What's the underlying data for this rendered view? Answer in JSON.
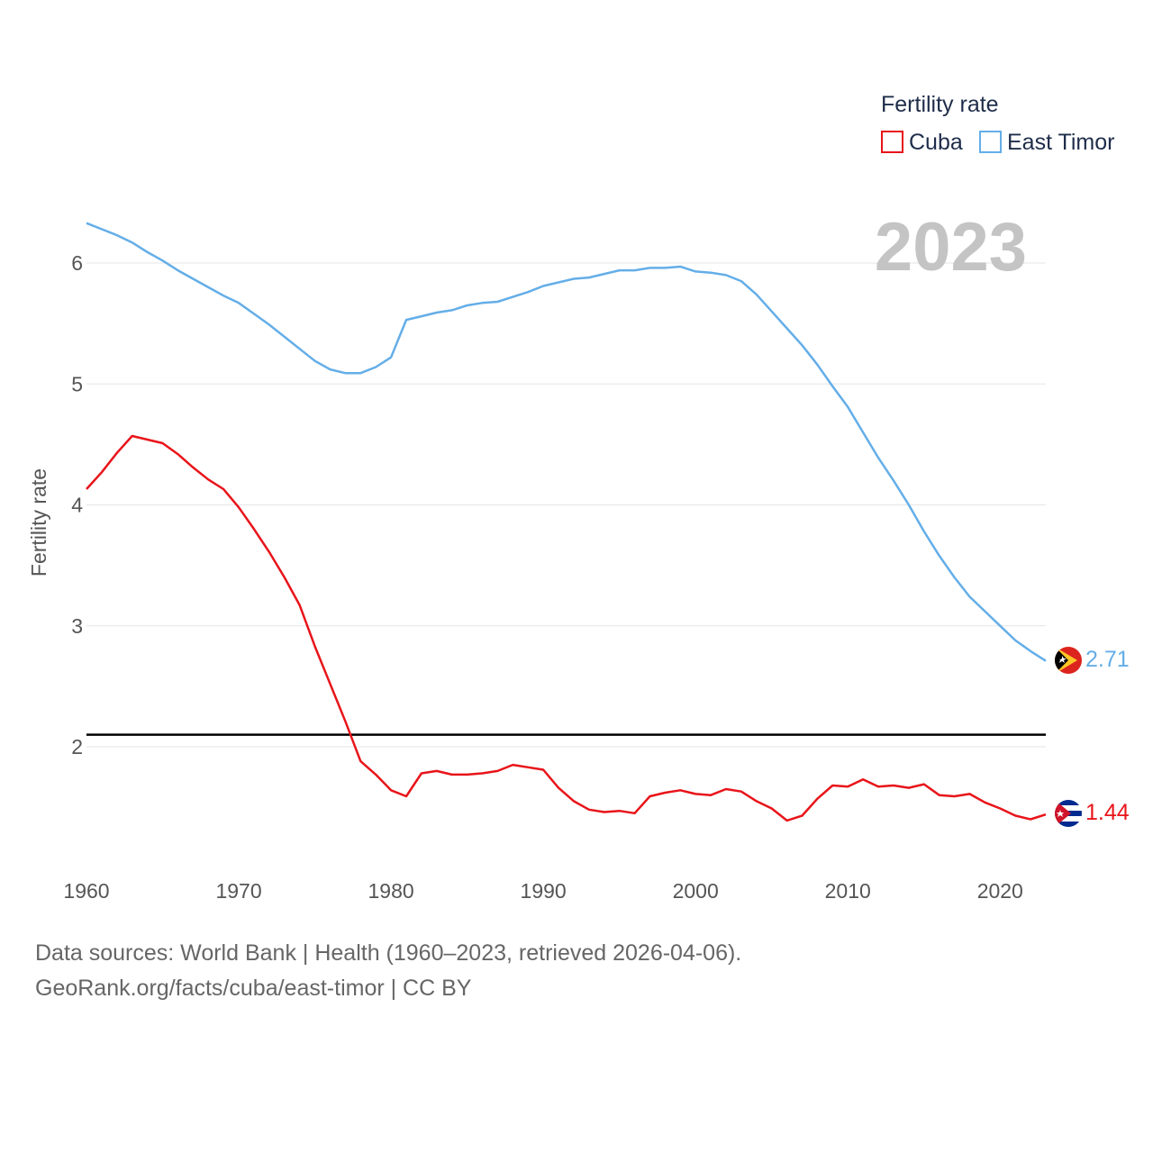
{
  "chart_data": {
    "type": "line",
    "title": "",
    "year_label": "2023",
    "ylabel": "Fertility rate",
    "xlabel": "",
    "xlim": [
      1960,
      2023
    ],
    "ylim": [
      1.2,
      6.5
    ],
    "x_ticks": [
      1960,
      1970,
      1980,
      1990,
      2000,
      2010,
      2020
    ],
    "y_ticks": [
      2,
      3,
      4,
      5,
      6
    ],
    "reference_line": 2.1,
    "legend": {
      "title": "Fertility rate",
      "position": "top-right"
    },
    "x": [
      1960,
      1961,
      1962,
      1963,
      1964,
      1965,
      1966,
      1967,
      1968,
      1969,
      1970,
      1971,
      1972,
      1973,
      1974,
      1975,
      1976,
      1977,
      1978,
      1979,
      1980,
      1981,
      1982,
      1983,
      1984,
      1985,
      1986,
      1987,
      1988,
      1989,
      1990,
      1991,
      1992,
      1993,
      1994,
      1995,
      1996,
      1997,
      1998,
      1999,
      2000,
      2001,
      2002,
      2003,
      2004,
      2005,
      2006,
      2007,
      2008,
      2009,
      2010,
      2011,
      2012,
      2013,
      2014,
      2015,
      2016,
      2017,
      2018,
      2019,
      2020,
      2021,
      2022,
      2023
    ],
    "series": [
      {
        "name": "Cuba",
        "color": "#e8141a",
        "end_label": "1.44",
        "values": [
          4.13,
          4.27,
          4.43,
          4.57,
          4.54,
          4.51,
          4.42,
          4.31,
          4.21,
          4.13,
          3.98,
          3.8,
          3.61,
          3.4,
          3.17,
          2.83,
          2.52,
          2.21,
          1.88,
          1.77,
          1.64,
          1.59,
          1.78,
          1.8,
          1.77,
          1.77,
          1.78,
          1.8,
          1.85,
          1.83,
          1.81,
          1.66,
          1.55,
          1.48,
          1.46,
          1.47,
          1.45,
          1.59,
          1.62,
          1.64,
          1.61,
          1.6,
          1.65,
          1.63,
          1.55,
          1.49,
          1.39,
          1.43,
          1.57,
          1.68,
          1.67,
          1.73,
          1.67,
          1.68,
          1.66,
          1.69,
          1.6,
          1.59,
          1.61,
          1.54,
          1.49,
          1.43,
          1.4,
          1.44
        ]
      },
      {
        "name": "East Timor",
        "color": "#64aee8",
        "end_label": "2.71",
        "values": [
          6.33,
          6.28,
          6.23,
          6.17,
          6.09,
          6.02,
          5.94,
          5.87,
          5.8,
          5.73,
          5.67,
          5.58,
          5.49,
          5.39,
          5.29,
          5.19,
          5.12,
          5.09,
          5.09,
          5.14,
          5.22,
          5.53,
          5.56,
          5.59,
          5.61,
          5.65,
          5.67,
          5.68,
          5.72,
          5.76,
          5.81,
          5.84,
          5.87,
          5.88,
          5.91,
          5.94,
          5.94,
          5.96,
          5.96,
          5.97,
          5.93,
          5.92,
          5.9,
          5.85,
          5.74,
          5.6,
          5.46,
          5.32,
          5.16,
          4.98,
          4.81,
          4.6,
          4.39,
          4.2,
          4.0,
          3.78,
          3.58,
          3.4,
          3.24,
          3.12,
          3.0,
          2.88,
          2.79,
          2.71
        ]
      }
    ]
  },
  "footer": {
    "source_line": "Data sources: World Bank | Health (1960–2023, retrieved 2026-04-06).",
    "credit_line": "GeoRank.org/facts/cuba/east-timor | CC BY"
  },
  "colors": {
    "grid": "#e6e6e6",
    "axis_text": "#555555",
    "reference_line": "#000000"
  }
}
